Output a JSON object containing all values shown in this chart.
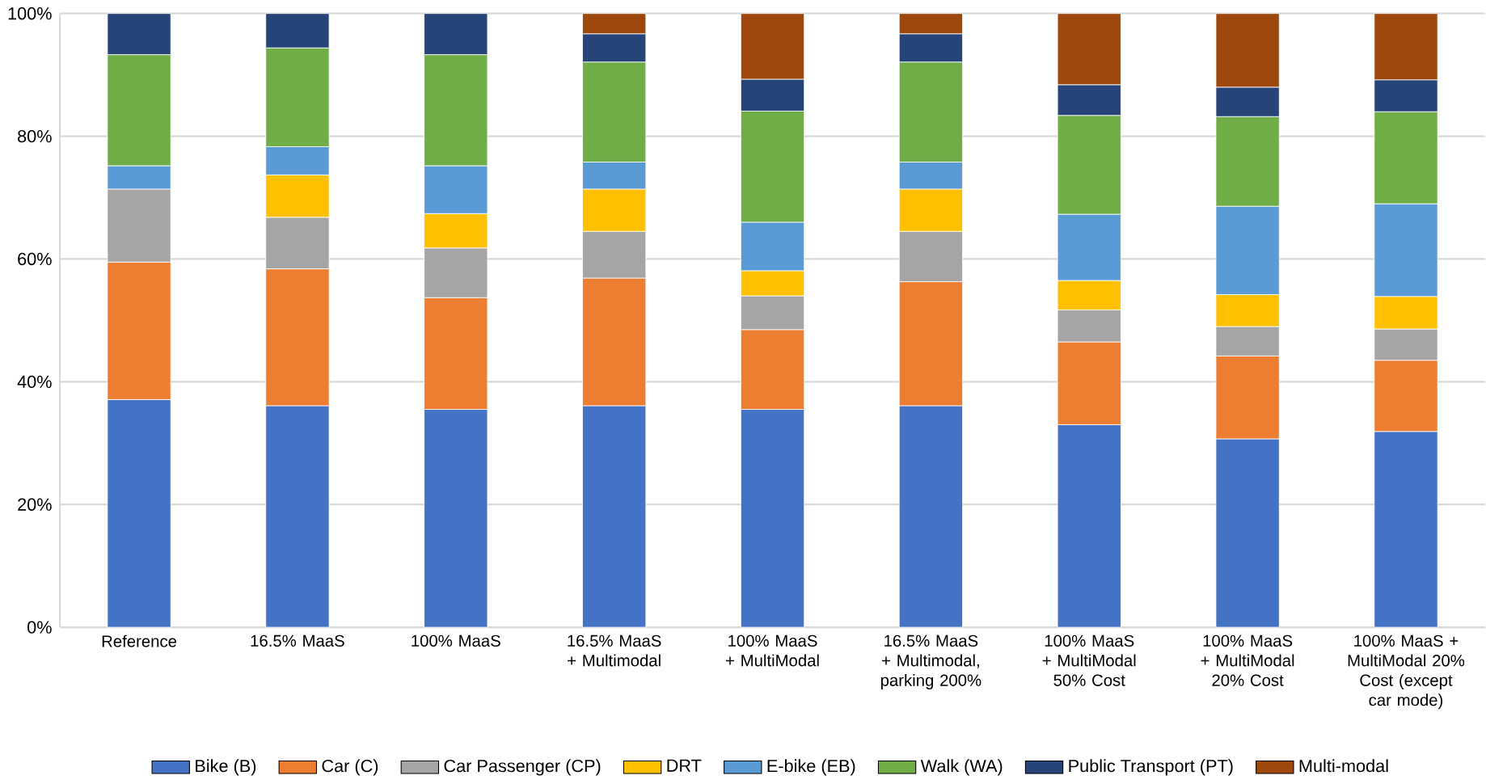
{
  "chart_data": {
    "type": "bar",
    "stacked": true,
    "categories": [
      "Reference",
      "16.5% MaaS",
      "100% MaaS",
      "16.5% MaaS + Multimodal",
      "100% MaaS + MultiModal",
      "16.5% MaaS + Multimodal, parking 200%",
      "100% MaaS + MultiModal 50% Cost",
      "100% MaaS + MultiModal 20% Cost",
      "100% MaaS + MultiModal 20% Cost (except car mode)"
    ],
    "series": [
      {
        "name": "Bike (B)",
        "color": "#4472c4",
        "values": [
          37.1,
          36.1,
          35.5,
          36.1,
          35.5,
          36.1,
          33.0,
          30.7,
          31.9
        ]
      },
      {
        "name": "Car (C)",
        "color": "#ed7d31",
        "values": [
          22.4,
          22.3,
          18.2,
          20.8,
          13.0,
          20.2,
          13.5,
          13.5,
          11.6
        ]
      },
      {
        "name": "Car Passenger (CP)",
        "color": "#a5a5a5",
        "values": [
          11.9,
          8.4,
          8.1,
          7.6,
          5.5,
          8.2,
          5.2,
          4.8,
          5.1
        ]
      },
      {
        "name": "DRT",
        "color": "#ffc000",
        "values": [
          null,
          6.9,
          5.6,
          6.9,
          4.1,
          6.9,
          4.8,
          5.2,
          5.3
        ]
      },
      {
        "name": "E-bike (EB)",
        "color": "#5b9bd5",
        "values": [
          3.8,
          4.6,
          7.8,
          4.4,
          7.9,
          4.4,
          10.8,
          14.4,
          15.1
        ]
      },
      {
        "name": "Walk (WA)",
        "color": "#70ad47",
        "values": [
          18.1,
          16.1,
          18.1,
          16.3,
          18.1,
          16.3,
          16.1,
          14.6,
          15.0
        ]
      },
      {
        "name": "Public Transport (PT)",
        "color": "#264478",
        "values": [
          6.7,
          5.6,
          6.7,
          4.6,
          5.2,
          4.6,
          5.0,
          4.8,
          5.2
        ]
      },
      {
        "name": "Multi-modal",
        "color": "#9e480e",
        "values": [
          null,
          null,
          null,
          3.3,
          10.7,
          3.3,
          11.6,
          12.0,
          10.8
        ]
      }
    ],
    "ylim": [
      0,
      100
    ],
    "yticks": [
      {
        "value": 0,
        "label": "0%"
      },
      {
        "value": 20,
        "label": "20%"
      },
      {
        "value": 40,
        "label": "40%"
      },
      {
        "value": 60,
        "label": "60%"
      },
      {
        "value": 80,
        "label": "80%"
      },
      {
        "value": 100,
        "label": "100%"
      }
    ],
    "grid": "y",
    "legend": "bottom"
  }
}
